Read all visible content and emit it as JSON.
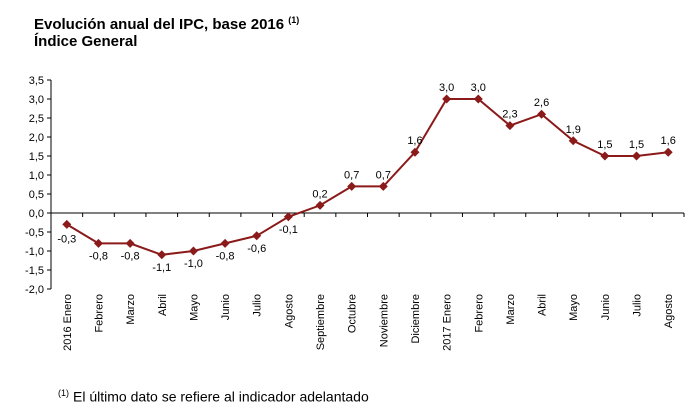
{
  "title": "Evolución anual del IPC, base 2016",
  "title_note": "(1)",
  "subtitle": "Índice General",
  "footnote": {
    "mark": "(1)",
    "text": "El último dato se refiere al indicador adelantado"
  },
  "colors": {
    "series": "#8B1A1A",
    "axis": "#000000"
  },
  "chart_data": {
    "type": "line",
    "title": "Evolución anual del IPC, base 2016",
    "subtitle": "Índice General",
    "categories": [
      "2016 Enero",
      "Febrero",
      "Marzo",
      "Abril",
      "Mayo",
      "Junio",
      "Julio",
      "Agosto",
      "Septiembre",
      "Octubre",
      "Noviembre",
      "Diciembre",
      "2017 Enero",
      "Febrero",
      "Marzo",
      "Abril",
      "Mayo",
      "Junio",
      "Julio",
      "Agosto"
    ],
    "values": [
      -0.3,
      -0.8,
      -0.8,
      -1.1,
      -1.0,
      -0.8,
      -0.6,
      -0.1,
      0.2,
      0.7,
      0.7,
      1.6,
      3.0,
      3.0,
      2.3,
      2.6,
      1.9,
      1.5,
      1.5,
      1.6
    ],
    "data_labels": [
      "-0,3",
      "-0,8",
      "-0,8",
      "-1,1",
      "-1,0",
      "-0,8",
      "-0,6",
      "-0,1",
      "0,2",
      "0,7",
      "0,7",
      "1,6",
      "3,0",
      "3,0",
      "2,3",
      "2,6",
      "1,9",
      "1,5",
      "1,5",
      "1,6"
    ],
    "ylim": [
      -2.0,
      3.5
    ],
    "yticks": [
      "-2,0",
      "-1,5",
      "-1,0",
      "-0,5",
      "0,0",
      "0,5",
      "1,0",
      "1,5",
      "2,0",
      "2,5",
      "3,0",
      "3,5"
    ],
    "ytick_values": [
      -2.0,
      -1.5,
      -1.0,
      -0.5,
      0.0,
      0.5,
      1.0,
      1.5,
      2.0,
      2.5,
      3.0,
      3.5
    ],
    "marker": "diamond",
    "grid": false,
    "legend": "none",
    "xlabel": "",
    "ylabel": ""
  }
}
